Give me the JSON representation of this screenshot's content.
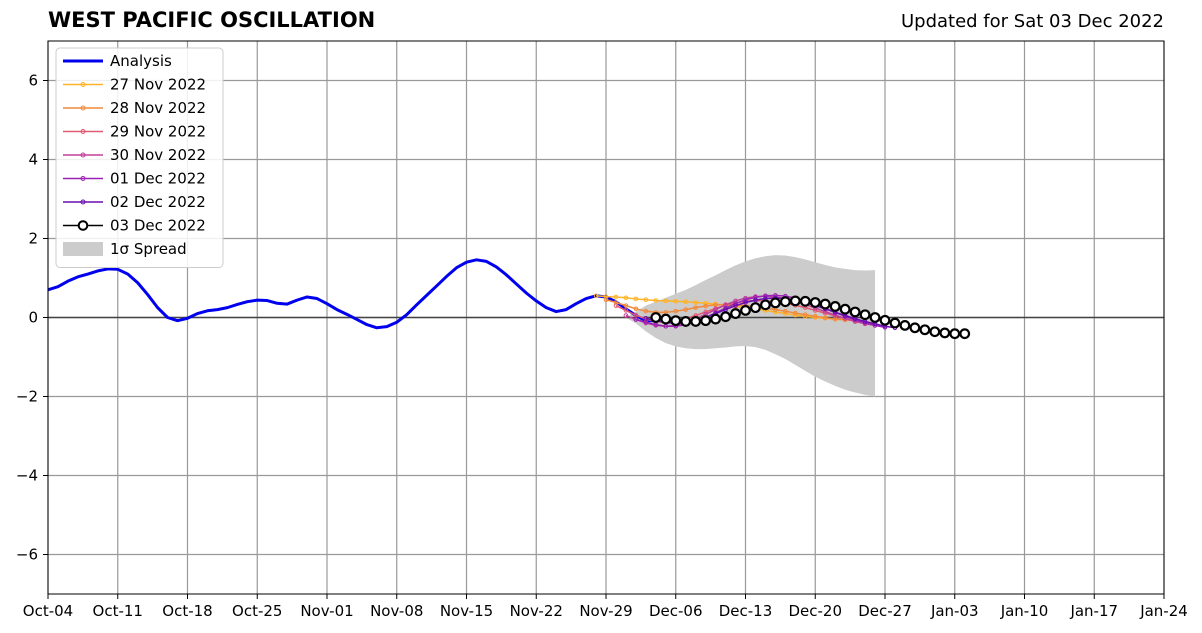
{
  "header": {
    "title": "WEST PACIFIC OSCILLATION",
    "updated": "Updated for Sat 03 Dec 2022"
  },
  "chart_data": {
    "type": "line",
    "title": "WEST PACIFIC OSCILLATION",
    "xlabel": "",
    "ylabel": "",
    "x_ticks": [
      "Oct-04",
      "Oct-11",
      "Oct-18",
      "Oct-25",
      "Nov-01",
      "Nov-08",
      "Nov-15",
      "Nov-22",
      "Nov-29",
      "Dec-06",
      "Dec-13",
      "Dec-20",
      "Dec-27",
      "Jan-03",
      "Jan-10",
      "Jan-17",
      "Jan-24"
    ],
    "y_ticks": [
      6,
      4,
      2,
      0,
      -2,
      -4,
      -6
    ],
    "y_tick_labels": [
      "6",
      "4",
      "2",
      "0",
      "−2",
      "−4",
      "−6"
    ],
    "ylim": [
      -7,
      7
    ],
    "xlim_days_from_oct04": [
      0,
      112
    ],
    "grid": true,
    "legend_position": "top-left",
    "analysis": {
      "name": "Analysis",
      "color": "#0000ee",
      "start_date": "Oct-04",
      "values": [
        0.7,
        0.78,
        0.92,
        1.03,
        1.1,
        1.18,
        1.23,
        1.22,
        1.1,
        0.88,
        0.58,
        0.25,
        0.0,
        -0.08,
        -0.02,
        0.1,
        0.17,
        0.2,
        0.25,
        0.33,
        0.4,
        0.44,
        0.43,
        0.36,
        0.34,
        0.44,
        0.52,
        0.48,
        0.35,
        0.2,
        0.08,
        -0.05,
        -0.18,
        -0.26,
        -0.23,
        -0.12,
        0.07,
        0.32,
        0.56,
        0.8,
        1.04,
        1.26,
        1.4,
        1.46,
        1.42,
        1.28,
        1.08,
        0.85,
        0.62,
        0.42,
        0.25,
        0.15,
        0.2,
        0.35,
        0.48,
        0.55,
        0.52,
        0.4,
        0.22,
        0.05,
        -0.08,
        -0.08
      ]
    },
    "spread": {
      "name": "1σ Spread",
      "color": "#cccccc",
      "start_date": "Dec-01",
      "upper": [
        0.0,
        0.15,
        0.3,
        0.4,
        0.5,
        0.6,
        0.7,
        0.82,
        0.95,
        1.07,
        1.2,
        1.32,
        1.42,
        1.5,
        1.55,
        1.58,
        1.57,
        1.53,
        1.47,
        1.4,
        1.33,
        1.27,
        1.23,
        1.2,
        1.19,
        1.2
      ],
      "lower": [
        0.0,
        -0.15,
        -0.35,
        -0.52,
        -0.65,
        -0.73,
        -0.78,
        -0.8,
        -0.8,
        -0.78,
        -0.76,
        -0.73,
        -0.72,
        -0.75,
        -0.82,
        -0.93,
        -1.05,
        -1.2,
        -1.35,
        -1.5,
        -1.62,
        -1.73,
        -1.83,
        -1.9,
        -1.96,
        -2.0
      ]
    },
    "series": [
      {
        "name": "27 Nov 2022",
        "color": "#ffb226",
        "start_date": "Nov-28",
        "values": [
          0.55,
          0.53,
          0.52,
          0.5,
          0.47,
          0.45,
          0.43,
          0.42,
          0.41,
          0.4,
          0.38,
          0.36,
          0.34,
          0.31,
          0.28,
          0.25,
          0.22,
          0.18,
          0.14,
          0.1,
          0.06,
          0.03,
          0.0,
          -0.02,
          -0.04,
          -0.05,
          -0.06
        ]
      },
      {
        "name": "28 Nov 2022",
        "color": "#f08a3c",
        "start_date": "Nov-29",
        "values": [
          0.45,
          0.38,
          0.3,
          0.22,
          0.16,
          0.13,
          0.13,
          0.16,
          0.2,
          0.25,
          0.29,
          0.32,
          0.33,
          0.32,
          0.3,
          0.27,
          0.24,
          0.2,
          0.16,
          0.11,
          0.07,
          0.03,
          -0.01,
          -0.04,
          -0.06,
          -0.08
        ]
      },
      {
        "name": "29 Nov 2022",
        "color": "#e05a73",
        "start_date": "Nov-30",
        "values": [
          0.3,
          0.18,
          0.06,
          -0.04,
          -0.1,
          -0.12,
          -0.09,
          -0.03,
          0.05,
          0.14,
          0.23,
          0.31,
          0.37,
          0.41,
          0.43,
          0.42,
          0.4,
          0.36,
          0.31,
          0.25,
          0.18,
          0.11,
          0.04,
          -0.03,
          -0.1,
          -0.15
        ]
      },
      {
        "name": "30 Nov 2022",
        "color": "#c0409a",
        "start_date": "Dec-01",
        "values": [
          0.05,
          -0.05,
          -0.14,
          -0.2,
          -0.22,
          -0.2,
          -0.13,
          -0.03,
          0.08,
          0.2,
          0.32,
          0.42,
          0.49,
          0.53,
          0.54,
          0.52,
          0.48,
          0.41,
          0.33,
          0.24,
          0.15,
          0.06,
          -0.02,
          -0.1,
          -0.16,
          -0.2
        ]
      },
      {
        "name": "01 Dec 2022",
        "color": "#9b22b4",
        "start_date": "Dec-02",
        "values": [
          -0.05,
          -0.12,
          -0.18,
          -0.22,
          -0.22,
          -0.18,
          -0.1,
          0.0,
          0.12,
          0.24,
          0.35,
          0.45,
          0.51,
          0.55,
          0.56,
          0.54,
          0.49,
          0.42,
          0.33,
          0.23,
          0.13,
          0.03,
          -0.06,
          -0.13,
          -0.2,
          -0.25
        ]
      },
      {
        "name": "02 Dec 2022",
        "color": "#6a0db0",
        "start_date": "Dec-03",
        "values": [
          -0.02,
          -0.08,
          -0.13,
          -0.15,
          -0.13,
          -0.08,
          0.0,
          0.1,
          0.2,
          0.3,
          0.38,
          0.44,
          0.48,
          0.49,
          0.48,
          0.44,
          0.38,
          0.3,
          0.22,
          0.13,
          0.05,
          -0.03,
          -0.1,
          -0.16,
          -0.22,
          -0.26
        ]
      },
      {
        "name": "03 Dec 2022",
        "color": "#000000",
        "start_date": "Dec-04",
        "values": [
          0.0,
          -0.04,
          -0.08,
          -0.1,
          -0.1,
          -0.08,
          -0.04,
          0.02,
          0.1,
          0.18,
          0.25,
          0.32,
          0.37,
          0.4,
          0.42,
          0.41,
          0.38,
          0.34,
          0.28,
          0.21,
          0.14,
          0.07,
          0.0,
          -0.07,
          -0.14,
          -0.2,
          -0.26,
          -0.31,
          -0.36,
          -0.39,
          -0.41,
          -0.41
        ]
      }
    ]
  }
}
